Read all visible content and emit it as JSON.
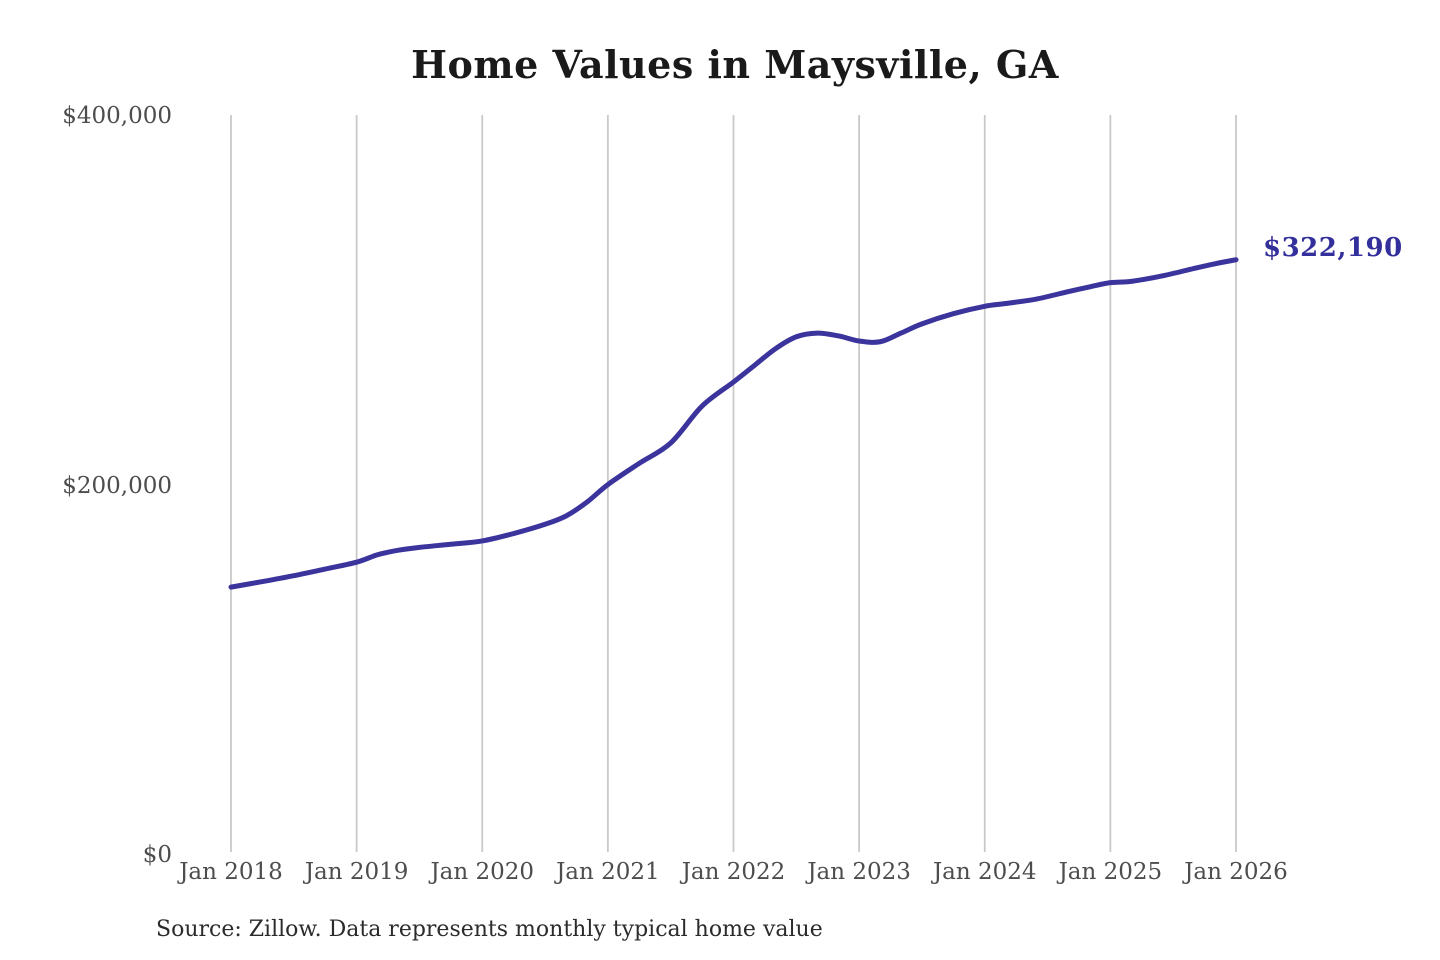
{
  "source_note": "Source: Zillow. Data represents monthly typical home value",
  "colors": {
    "background": "#ffffff",
    "line": "#3b349c",
    "title_text": "#1a1a1a",
    "axis_text": "#4d4d4d",
    "gridline": "#c9c9c9",
    "source_text": "#2b2b2b",
    "value_label": "#34309b"
  },
  "chart_data": {
    "type": "line",
    "title": "Home Values in Maysville, GA",
    "unit": "USD",
    "grid": "vertical-only",
    "legend": "none",
    "end_label": "$322,190",
    "final_value": 322190,
    "ylim": [
      0,
      400000
    ],
    "y_ticks": [
      {
        "value": 0,
        "label": "$0"
      },
      {
        "value": 200000,
        "label": "$200,000"
      },
      {
        "value": 400000,
        "label": "$400,000"
      }
    ],
    "x_ticks": [
      {
        "year": 2018,
        "label": "Jan 2018"
      },
      {
        "year": 2019,
        "label": "Jan 2019"
      },
      {
        "year": 2020,
        "label": "Jan 2020"
      },
      {
        "year": 2021,
        "label": "Jan 2021"
      },
      {
        "year": 2022,
        "label": "Jan 2022"
      },
      {
        "year": 2023,
        "label": "Jan 2023"
      },
      {
        "year": 2024,
        "label": "Jan 2024"
      },
      {
        "year": 2025,
        "label": "Jan 2025"
      },
      {
        "year": 2026,
        "label": "Jan 2026"
      }
    ],
    "series": [
      {
        "name": "Monthly typical home value",
        "color": "#3b349c",
        "points": [
          {
            "date": "2018-01",
            "value": 145000
          },
          {
            "date": "2018-04",
            "value": 148000
          },
          {
            "date": "2018-07",
            "value": 151200
          },
          {
            "date": "2018-10",
            "value": 154800
          },
          {
            "date": "2019-01",
            "value": 158500
          },
          {
            "date": "2019-03",
            "value": 162500
          },
          {
            "date": "2019-05",
            "value": 165000
          },
          {
            "date": "2019-07",
            "value": 166500
          },
          {
            "date": "2019-10",
            "value": 168200
          },
          {
            "date": "2020-01",
            "value": 170000
          },
          {
            "date": "2020-04",
            "value": 174000
          },
          {
            "date": "2020-07",
            "value": 179000
          },
          {
            "date": "2020-09",
            "value": 183500
          },
          {
            "date": "2020-11",
            "value": 191000
          },
          {
            "date": "2021-01",
            "value": 200500
          },
          {
            "date": "2021-04",
            "value": 212000
          },
          {
            "date": "2021-07",
            "value": 223000
          },
          {
            "date": "2021-10",
            "value": 243000
          },
          {
            "date": "2022-01",
            "value": 256000
          },
          {
            "date": "2022-03",
            "value": 265000
          },
          {
            "date": "2022-05",
            "value": 274000
          },
          {
            "date": "2022-07",
            "value": 280500
          },
          {
            "date": "2022-09",
            "value": 282500
          },
          {
            "date": "2022-11",
            "value": 281000
          },
          {
            "date": "2023-01",
            "value": 278200
          },
          {
            "date": "2023-03",
            "value": 277800
          },
          {
            "date": "2023-05",
            "value": 282500
          },
          {
            "date": "2023-07",
            "value": 287500
          },
          {
            "date": "2023-10",
            "value": 293000
          },
          {
            "date": "2024-01",
            "value": 297000
          },
          {
            "date": "2024-03",
            "value": 298500
          },
          {
            "date": "2024-06",
            "value": 301000
          },
          {
            "date": "2024-09",
            "value": 305000
          },
          {
            "date": "2024-11",
            "value": 307500
          },
          {
            "date": "2025-01",
            "value": 309800
          },
          {
            "date": "2025-03",
            "value": 310500
          },
          {
            "date": "2025-06",
            "value": 313500
          },
          {
            "date": "2025-09",
            "value": 317500
          },
          {
            "date": "2025-11",
            "value": 320000
          },
          {
            "date": "2026-01",
            "value": 322190
          }
        ]
      }
    ]
  }
}
